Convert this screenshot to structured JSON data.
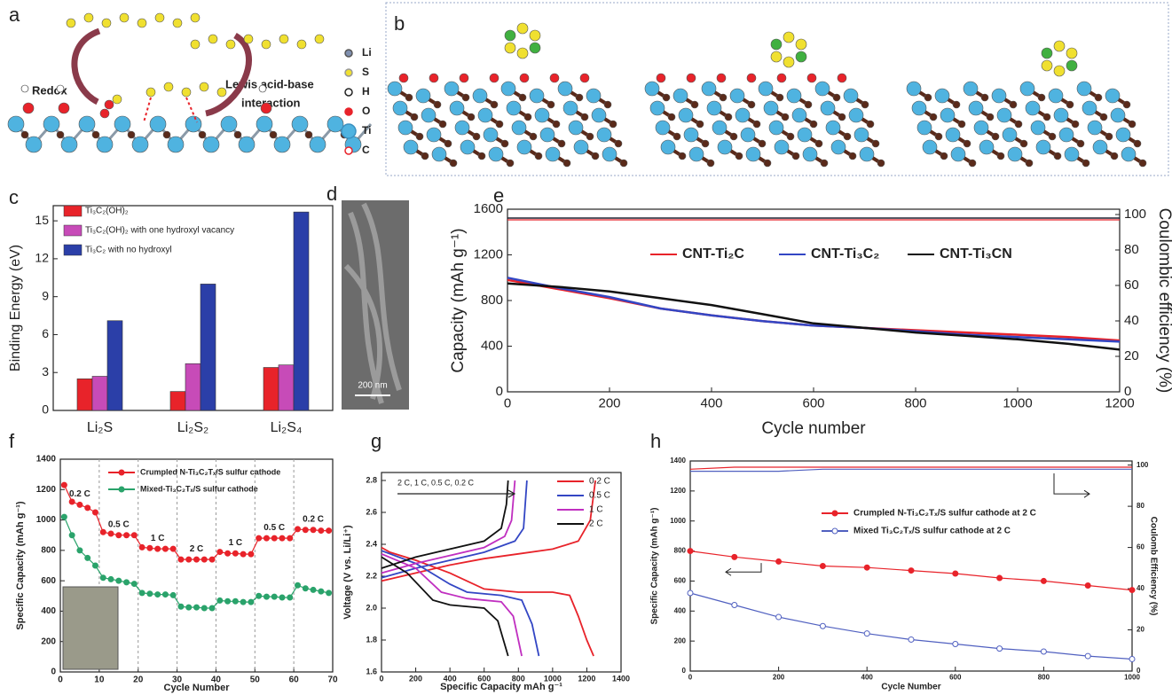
{
  "panel_labels": [
    "a",
    "b",
    "c",
    "d",
    "e",
    "f",
    "g",
    "h"
  ],
  "diagram_a": {
    "labels": [
      "Redox",
      "Lewis acid-base",
      "interaction"
    ],
    "legend": [
      "Li",
      "S",
      "H",
      "O",
      "Ti",
      "C"
    ]
  },
  "image_d": {
    "scale_bar": "200 nm"
  },
  "chart_data": [
    {
      "type": "bar",
      "categories": [
        "Li₂S",
        "Li₂S₂",
        "Li₂S₄"
      ],
      "series": [
        {
          "name": "Ti₃C₂(OH)₂",
          "color": "#e8232a",
          "values": [
            2.5,
            1.5,
            3.4
          ]
        },
        {
          "name": "Ti₃C₂(OH)₂ with one hydroxyl vacancy",
          "color": "#c74bb8",
          "values": [
            2.7,
            3.7,
            3.6
          ]
        },
        {
          "name": "Ti₃C₂ with no hydroxyl",
          "color": "#2b3fa8",
          "values": [
            7.1,
            10,
            15.7
          ]
        }
      ],
      "ylim": [
        0,
        16.2
      ],
      "yticks": [
        0,
        3,
        6,
        9,
        12,
        15
      ],
      "ylabel": "Binding Energy (eV)",
      "legend": "upper left"
    },
    {
      "type": "line",
      "x": [
        0,
        100,
        200,
        300,
        400,
        500,
        600,
        700,
        800,
        900,
        1000,
        1100,
        1200
      ],
      "series": [
        {
          "name": "CNT-Ti₂C",
          "color": "#e8232a",
          "values": [
            980,
            900,
            820,
            730,
            670,
            620,
            580,
            560,
            540,
            520,
            500,
            480,
            450
          ]
        },
        {
          "name": "CNT-Ti₃C₂",
          "color": "#3346c4",
          "values": [
            1000,
            910,
            830,
            730,
            670,
            620,
            580,
            560,
            530,
            500,
            480,
            460,
            440
          ]
        },
        {
          "name": "CNT-Ti₃CN",
          "color": "#111111",
          "values": [
            950,
            920,
            880,
            820,
            760,
            680,
            600,
            560,
            520,
            490,
            460,
            420,
            370
          ]
        },
        {
          "color": "#e8232a",
          "axis": "y2",
          "values": [
            97,
            97,
            97,
            97,
            97,
            97,
            97,
            97,
            97,
            97,
            97,
            97,
            97
          ]
        },
        {
          "color": "#3346c4",
          "axis": "y2",
          "values": [
            98,
            98,
            98,
            98,
            98,
            98,
            98,
            98,
            98,
            98,
            98,
            98,
            98
          ]
        },
        {
          "color": "#111111",
          "axis": "y2",
          "values": [
            98,
            98,
            98,
            98,
            98,
            98,
            98,
            98,
            98,
            98,
            98,
            98,
            98
          ]
        }
      ],
      "xlim": [
        0,
        1200
      ],
      "xticks": [
        0,
        200,
        400,
        600,
        800,
        1000,
        1200
      ],
      "ylim": [
        0,
        1600
      ],
      "yticks": [
        0,
        400,
        800,
        1200,
        1600
      ],
      "y2lim": [
        0,
        103
      ],
      "y2ticks": [
        0,
        20,
        40,
        60,
        80,
        100
      ],
      "xlabel": "Cycle number",
      "ylabel": "Capacity (mAh g⁻¹)",
      "y2label": "Coulombic efficiency (%)",
      "legend": "upper center"
    },
    {
      "type": "line",
      "x": [
        1,
        3,
        5,
        7,
        9,
        11,
        13,
        15,
        17,
        19,
        21,
        23,
        25,
        27,
        29,
        31,
        33,
        35,
        37,
        39,
        41,
        43,
        45,
        47,
        49,
        51,
        53,
        55,
        57,
        59,
        61,
        63,
        65,
        67,
        69
      ],
      "series": [
        {
          "name": "Crumpled N-Ti₃C₂Tₓ/S sulfur cathode",
          "color": "#e8232a",
          "marker": "circle",
          "values": [
            1230,
            1120,
            1100,
            1080,
            1050,
            920,
            910,
            900,
            900,
            900,
            820,
            815,
            810,
            810,
            810,
            740,
            740,
            740,
            740,
            740,
            790,
            780,
            780,
            775,
            775,
            880,
            880,
            880,
            880,
            880,
            940,
            935,
            935,
            930,
            930
          ]
        },
        {
          "name": "Mixed-Ti₃C₂Tₓ/S sulfur cathode",
          "color": "#2aa36b",
          "marker": "circle",
          "values": [
            1020,
            900,
            800,
            750,
            700,
            620,
            610,
            600,
            590,
            580,
            520,
            515,
            510,
            510,
            505,
            430,
            425,
            425,
            420,
            420,
            470,
            465,
            465,
            460,
            460,
            500,
            495,
            495,
            490,
            490,
            570,
            550,
            540,
            530,
            520
          ]
        }
      ],
      "annotations": [
        "0.2 C",
        "0.5 C",
        "1 C",
        "2 C",
        "1 C",
        "0.5 C",
        "0.2 C"
      ],
      "xlim": [
        0,
        70
      ],
      "xticks": [
        0,
        10,
        20,
        30,
        40,
        50,
        60,
        70
      ],
      "ylim": [
        0,
        1400
      ],
      "yticks": [
        0,
        200,
        400,
        600,
        800,
        1000,
        1200,
        1400
      ],
      "xlabel": "Cycle Number",
      "ylabel": "Specific Capacity (mAh g⁻¹)",
      "legend": "upper right"
    },
    {
      "type": "line",
      "series": [
        {
          "name": "0.2 C",
          "color": "#e8232a",
          "x": [
            0,
            50,
            200,
            400,
            600,
            800,
            1000,
            1100,
            1150,
            1200,
            1240,
            null,
            0,
            200,
            400,
            600,
            800,
            1000,
            1150,
            1220,
            1250
          ],
          "values": [
            2.38,
            2.35,
            2.3,
            2.22,
            2.12,
            2.1,
            2.1,
            2.08,
            1.95,
            1.8,
            1.7,
            null,
            2.17,
            2.22,
            2.27,
            2.31,
            2.34,
            2.37,
            2.42,
            2.55,
            2.8
          ]
        },
        {
          "name": "0.5 C",
          "color": "#3346c4",
          "x": [
            0,
            200,
            400,
            500,
            700,
            820,
            880,
            920,
            null,
            0,
            200,
            400,
            600,
            780,
            830,
            850
          ],
          "values": [
            2.36,
            2.28,
            2.15,
            2.1,
            2.08,
            2.05,
            1.9,
            1.7,
            null,
            2.19,
            2.25,
            2.3,
            2.35,
            2.42,
            2.5,
            2.8
          ]
        },
        {
          "name": "1 C",
          "color": "#c02fc0",
          "x": [
            0,
            200,
            350,
            500,
            700,
            770,
            820,
            null,
            0,
            200,
            400,
            600,
            720,
            760,
            780
          ],
          "values": [
            2.34,
            2.25,
            2.1,
            2.06,
            2.04,
            1.95,
            1.7,
            null,
            2.22,
            2.28,
            2.33,
            2.38,
            2.45,
            2.55,
            2.8
          ]
        },
        {
          "name": "2 C",
          "color": "#111111",
          "x": [
            0,
            150,
            300,
            400,
            600,
            680,
            740,
            null,
            0,
            200,
            400,
            600,
            700,
            730,
            740
          ],
          "values": [
            2.32,
            2.22,
            2.05,
            2.02,
            2,
            1.92,
            1.7,
            null,
            2.25,
            2.32,
            2.37,
            2.42,
            2.5,
            2.65,
            2.8
          ]
        }
      ],
      "annotation": "2 C, 1 C, 0.5 C, 0.2 C",
      "xlim": [
        0,
        1400
      ],
      "xticks": [
        0,
        200,
        400,
        600,
        800,
        1000,
        1200,
        1400
      ],
      "ylim": [
        1.6,
        2.85
      ],
      "yticks": [
        1.6,
        1.8,
        {
          "value": 2,
          "label": "2.0"
        },
        2.2,
        2.4,
        2.6,
        2.8
      ],
      "xlabel": "Specific Capacity mAh g⁻¹",
      "ylabel": "Voltage (V vs. Li/Li⁺)",
      "legend": "upper right"
    },
    {
      "type": "line",
      "x": [
        0,
        100,
        200,
        300,
        400,
        500,
        600,
        700,
        800,
        900,
        1000
      ],
      "series": [
        {
          "name": "Crumpled N-Ti₃C₂Tₓ/S sulfur cathode at 2 C",
          "color": "#e8232a",
          "marker": "circle",
          "values": [
            800,
            760,
            730,
            700,
            690,
            670,
            650,
            620,
            600,
            570,
            540
          ]
        },
        {
          "name": "Mixed Ti₃C₂Tₓ/S sulfur cathode at 2 C",
          "color": "#5060c0",
          "marker": "open-circle",
          "values": [
            520,
            440,
            360,
            300,
            250,
            210,
            180,
            150,
            130,
            100,
            80
          ]
        },
        {
          "color": "#e8232a",
          "axis": "y2",
          "values": [
            98,
            99,
            99,
            99,
            99,
            99,
            99,
            99,
            99,
            99,
            99
          ]
        },
        {
          "color": "#5060c0",
          "axis": "y2",
          "values": [
            97,
            97,
            97,
            98,
            98,
            98,
            98,
            98,
            98,
            98,
            98
          ]
        }
      ],
      "xlim": [
        0,
        1000
      ],
      "xticks": [
        0,
        200,
        400,
        600,
        800,
        1000
      ],
      "ylim": [
        0,
        1400
      ],
      "yticks": [
        0,
        200,
        400,
        600,
        800,
        1000,
        1200,
        1400
      ],
      "y2lim": [
        0,
        102
      ],
      "y2ticks": [
        0,
        20,
        40,
        60,
        80,
        100
      ],
      "xlabel": "Cycle Number",
      "ylabel": "Specific Capacity (mAh g⁻¹)",
      "y2label": "Coulomb Efficiency (%)",
      "legend": "center right"
    }
  ]
}
